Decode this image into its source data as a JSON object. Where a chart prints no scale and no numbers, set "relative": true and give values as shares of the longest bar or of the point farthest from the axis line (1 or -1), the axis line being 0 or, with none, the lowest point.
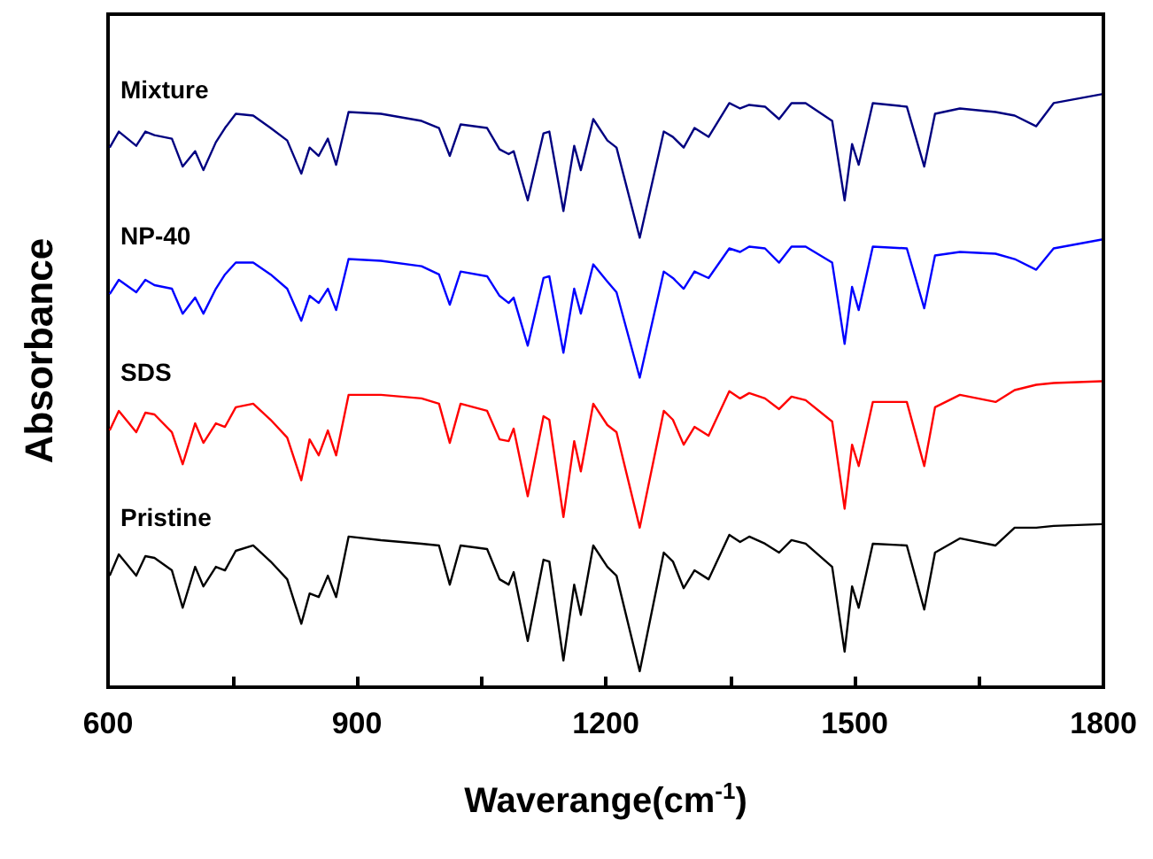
{
  "chart_data": {
    "type": "line",
    "relative": true,
    "xlabel": "Waverange(cm$^{-1}$)",
    "ylabel": "Absorbance",
    "xlim": [
      600,
      1800
    ],
    "xticks": [
      600,
      {
        "value": 750,
        "label": null
      },
      900,
      {
        "value": 1050,
        "label": null
      },
      1200,
      {
        "value": 1350,
        "label": null
      },
      1500,
      {
        "value": 1650,
        "label": null
      },
      1800
    ],
    "legend": false,
    "grid": false,
    "x": [
      602,
      613,
      634,
      645,
      656,
      677,
      690,
      705,
      715,
      730,
      741,
      754,
      775,
      796,
      816,
      833,
      843,
      854,
      865,
      875,
      890,
      929,
      978,
      999,
      1012,
      1025,
      1057,
      1072,
      1083,
      1089,
      1106,
      1125,
      1132,
      1149,
      1162,
      1170,
      1185,
      1202,
      1213,
      1241,
      1270,
      1281,
      1294,
      1307,
      1324,
      1349,
      1362,
      1373,
      1392,
      1409,
      1424,
      1441,
      1473,
      1488,
      1497,
      1505,
      1522,
      1563,
      1584,
      1597,
      1627,
      1670,
      1693,
      1719,
      1740,
      1798
    ],
    "series": [
      {
        "name": "Mixture",
        "color": "#000080",
        "values": [
          0.91,
          0.937,
          0.913,
          0.937,
          0.931,
          0.925,
          0.878,
          0.904,
          0.872,
          0.919,
          0.943,
          0.967,
          0.964,
          0.943,
          0.922,
          0.866,
          0.91,
          0.896,
          0.925,
          0.881,
          0.97,
          0.967,
          0.955,
          0.943,
          0.896,
          0.949,
          0.943,
          0.907,
          0.899,
          0.904,
          0.821,
          0.934,
          0.937,
          0.803,
          0.913,
          0.872,
          0.958,
          0.922,
          0.91,
          0.758,
          0.937,
          0.928,
          0.91,
          0.943,
          0.928,
          0.985,
          0.976,
          0.982,
          0.979,
          0.958,
          0.985,
          0.985,
          0.955,
          0.821,
          0.916,
          0.881,
          0.985,
          0.979,
          0.878,
          0.967,
          0.976,
          0.97,
          0.964,
          0.946,
          0.985,
          1
        ]
      },
      {
        "name": "NP-40",
        "color": "#0000ff",
        "values": [
          0.663,
          0.687,
          0.666,
          0.687,
          0.678,
          0.672,
          0.63,
          0.657,
          0.63,
          0.672,
          0.696,
          0.716,
          0.716,
          0.696,
          0.672,
          0.618,
          0.66,
          0.648,
          0.672,
          0.636,
          0.722,
          0.719,
          0.71,
          0.696,
          0.645,
          0.701,
          0.693,
          0.66,
          0.648,
          0.657,
          0.576,
          0.69,
          0.693,
          0.564,
          0.672,
          0.63,
          0.713,
          0.684,
          0.666,
          0.522,
          0.701,
          0.69,
          0.672,
          0.701,
          0.69,
          0.74,
          0.734,
          0.743,
          0.74,
          0.716,
          0.743,
          0.743,
          0.716,
          0.579,
          0.675,
          0.636,
          0.743,
          0.74,
          0.639,
          0.728,
          0.734,
          0.731,
          0.722,
          0.704,
          0.74,
          0.755
        ]
      },
      {
        "name": "SDS",
        "color": "#ff0000",
        "values": [
          0.433,
          0.466,
          0.43,
          0.463,
          0.46,
          0.43,
          0.376,
          0.445,
          0.412,
          0.445,
          0.439,
          0.472,
          0.478,
          0.451,
          0.421,
          0.349,
          0.418,
          0.391,
          0.433,
          0.391,
          0.493,
          0.493,
          0.487,
          0.478,
          0.412,
          0.478,
          0.466,
          0.418,
          0.415,
          0.436,
          0.322,
          0.457,
          0.451,
          0.287,
          0.415,
          0.364,
          0.478,
          0.442,
          0.43,
          0.269,
          0.466,
          0.451,
          0.409,
          0.439,
          0.424,
          0.499,
          0.487,
          0.496,
          0.487,
          0.469,
          0.49,
          0.484,
          0.448,
          0.301,
          0.409,
          0.373,
          0.481,
          0.481,
          0.373,
          0.472,
          0.493,
          0.481,
          0.501,
          0.51,
          0.513,
          0.516
        ]
      },
      {
        "name": "Pristine",
        "color": "#000000",
        "values": [
          0.188,
          0.224,
          0.188,
          0.221,
          0.218,
          0.197,
          0.134,
          0.203,
          0.17,
          0.203,
          0.197,
          0.23,
          0.239,
          0.212,
          0.182,
          0.107,
          0.158,
          0.152,
          0.188,
          0.152,
          0.254,
          0.248,
          0.242,
          0.239,
          0.173,
          0.239,
          0.233,
          0.182,
          0.173,
          0.194,
          0.078,
          0.215,
          0.212,
          0.045,
          0.173,
          0.122,
          0.239,
          0.203,
          0.188,
          0.027,
          0.227,
          0.212,
          0.167,
          0.197,
          0.182,
          0.257,
          0.245,
          0.254,
          0.242,
          0.227,
          0.248,
          0.242,
          0.203,
          0.06,
          0.17,
          0.134,
          0.242,
          0.239,
          0.131,
          0.227,
          0.251,
          0.239,
          0.269,
          0.269,
          0.272,
          0.275
        ]
      }
    ]
  }
}
